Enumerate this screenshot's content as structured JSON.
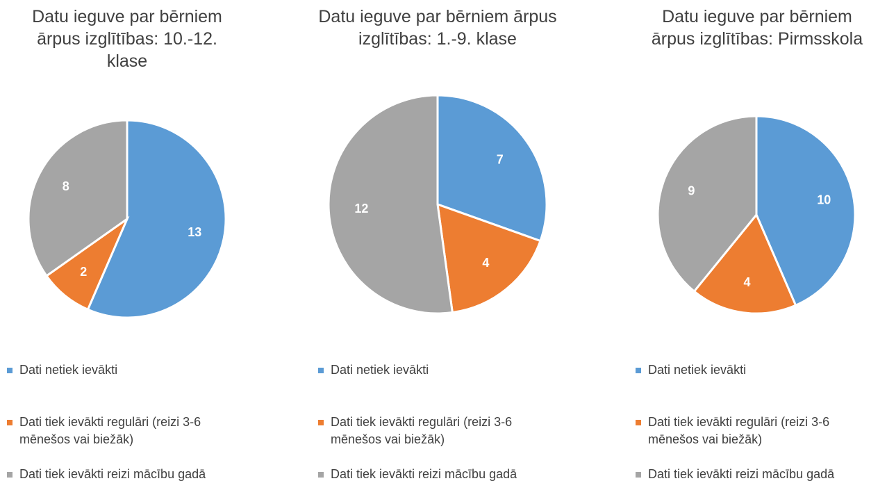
{
  "chart_data": [
    {
      "type": "pie",
      "title": "Datu ieguve par bērniem ārpus izglītības: 10.-12. klase",
      "categories": [
        "Dati netiek ievākti",
        "Dati tiek ievākti regulāri (reizi 3-6 mēnešos vai biežāk)",
        "Dati tiek ievākti reizi mācību gadā"
      ],
      "values": [
        13,
        2,
        8
      ],
      "colors": [
        "#5b9bd5",
        "#ed7d31",
        "#a5a5a5"
      ],
      "legend": "bottom"
    },
    {
      "type": "pie",
      "title": "Datu ieguve par bērniem ārpus izglītības: 1.-9. klase",
      "categories": [
        "Dati netiek ievākti",
        "Dati tiek ievākti regulāri (reizi 3-6 mēnešos vai biežāk)",
        "Dati tiek ievākti reizi mācību gadā"
      ],
      "values": [
        7,
        4,
        12
      ],
      "colors": [
        "#5b9bd5",
        "#ed7d31",
        "#a5a5a5"
      ],
      "legend": "bottom"
    },
    {
      "type": "pie",
      "title": "Datu ieguve par bērniem ārpus izglītības: Pirmsskola",
      "categories": [
        "Dati netiek ievākti",
        "Dati tiek ievākti regulāri (reizi 3-6 mēnešos vai biežāk)",
        "Dati tiek ievākti reizi mācību gadā"
      ],
      "values": [
        10,
        4,
        9
      ],
      "colors": [
        "#5b9bd5",
        "#ed7d31",
        "#a5a5a5"
      ],
      "legend": "bottom"
    }
  ]
}
